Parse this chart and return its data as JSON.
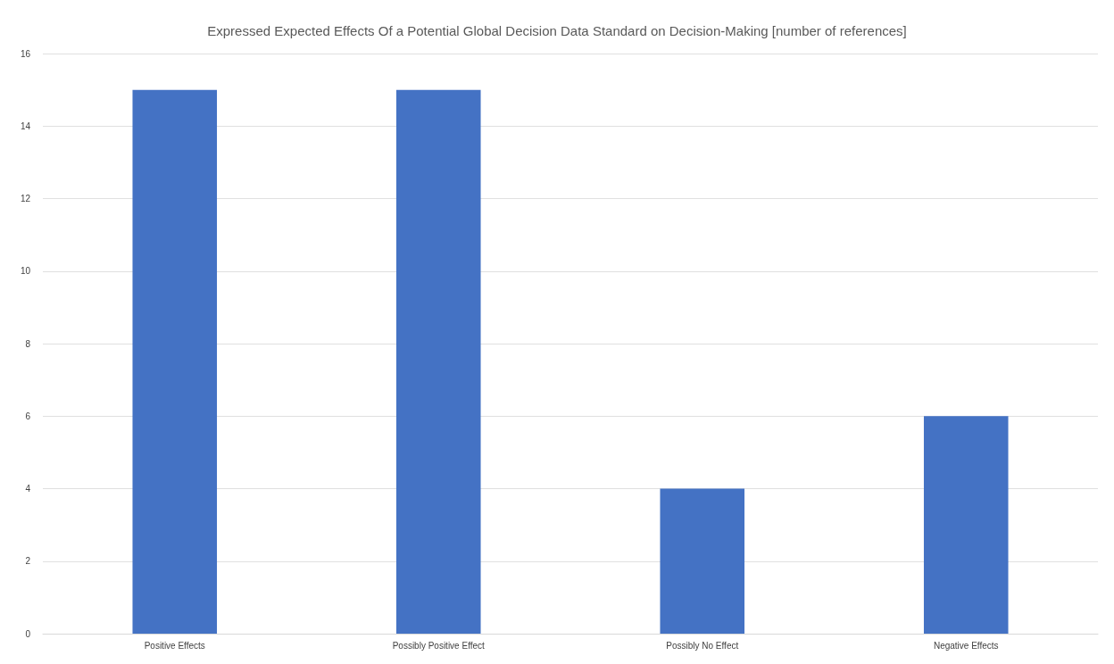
{
  "chart_data": {
    "type": "bar",
    "title": "Expressed Expected Effects Of a Potential Global Decision Data Standard on Decision-Making [number of references]",
    "categories": [
      "Positive Effects",
      "Possibly Positive Effect",
      "Possibly No Effect",
      "Negative Effects"
    ],
    "values": [
      15,
      15,
      4,
      6
    ],
    "color": "#4472c4",
    "ylim": [
      0,
      16
    ],
    "yticks": [
      0,
      2,
      4,
      6,
      8,
      10,
      12,
      14,
      16
    ],
    "grid": "y"
  }
}
